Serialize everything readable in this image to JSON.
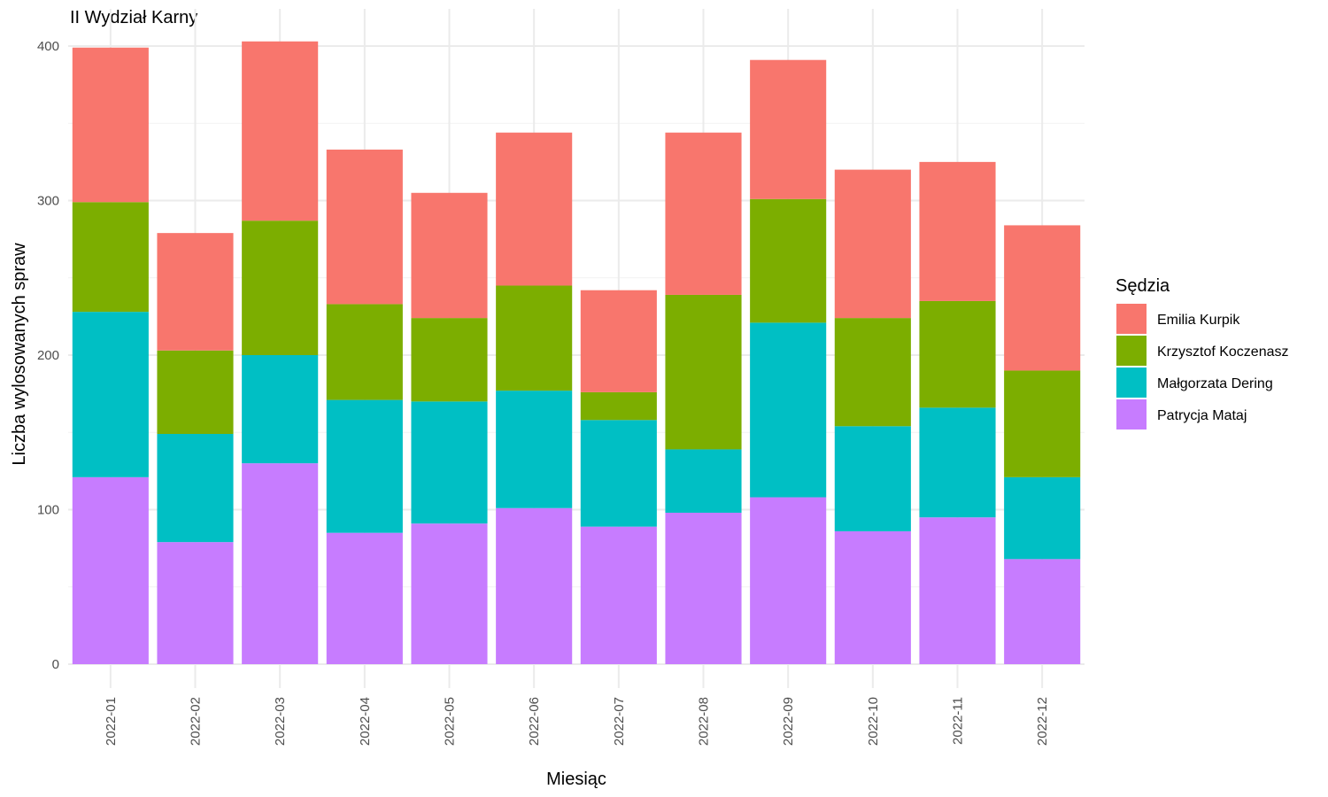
{
  "chart_data": {
    "type": "bar",
    "stacked": true,
    "title": "II Wydział Karny",
    "xlabel": "Miesiąc",
    "ylabel": "Liczba wylosowanych spraw",
    "ylim": [
      0,
      410
    ],
    "yticks": [
      0,
      100,
      200,
      300,
      400
    ],
    "grid": true,
    "legend": {
      "title": "Sędzia",
      "position": "right"
    },
    "categories": [
      "2022-01",
      "2022-02",
      "2022-03",
      "2022-04",
      "2022-05",
      "2022-06",
      "2022-07",
      "2022-08",
      "2022-09",
      "2022-10",
      "2022-11",
      "2022-12"
    ],
    "series": [
      {
        "name": "Patrycja Mataj",
        "color": "#C77CFF",
        "values": [
          121,
          79,
          130,
          85,
          91,
          101,
          89,
          98,
          108,
          86,
          95,
          68
        ]
      },
      {
        "name": "Małgorzata Dering",
        "color": "#00BFC4",
        "values": [
          107,
          70,
          70,
          86,
          79,
          76,
          69,
          41,
          113,
          68,
          71,
          53
        ]
      },
      {
        "name": "Krzysztof Koczenasz",
        "color": "#7CAE00",
        "values": [
          71,
          54,
          87,
          62,
          54,
          68,
          18,
          100,
          80,
          70,
          69,
          69
        ]
      },
      {
        "name": "Emilia Kurpik",
        "color": "#F8766D",
        "values": [
          100,
          76,
          116,
          100,
          81,
          99,
          66,
          105,
          90,
          96,
          90,
          94
        ]
      }
    ],
    "legend_order": [
      "Emilia Kurpik",
      "Krzysztof Koczenasz",
      "Małgorzata Dering",
      "Patrycja Mataj"
    ]
  }
}
